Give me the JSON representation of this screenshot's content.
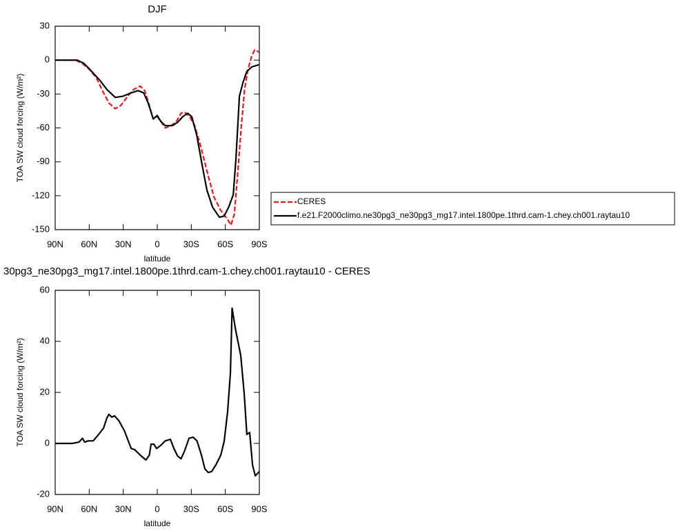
{
  "chart_data": [
    {
      "type": "line",
      "title": "DJF",
      "xlabel": "latitude",
      "ylabel": "TOA SW cloud forcing (W/m²)",
      "xlim": [
        90,
        -90
      ],
      "ylim": [
        -150,
        30
      ],
      "xticks": [
        {
          "value": 90,
          "label": "90N"
        },
        {
          "value": 60,
          "label": "60N"
        },
        {
          "value": 30,
          "label": "30N"
        },
        0,
        {
          "value": -30,
          "label": "30S"
        },
        {
          "value": -60,
          "label": "60S"
        },
        {
          "value": -90,
          "label": "90S"
        }
      ],
      "yticks": [
        30,
        0,
        -30,
        -60,
        -90,
        -120,
        -150
      ],
      "legend": "outside right",
      "series": [
        {
          "name": "CERES",
          "color": "#e8161b",
          "dashed": true,
          "x": [
            90,
            72,
            66,
            60,
            53.5,
            47.4,
            42.6,
            37,
            32,
            26,
            21,
            15,
            11,
            6.7,
            3.6,
            0,
            -3,
            -7,
            -12,
            -16.5,
            -21,
            -24,
            -28.6,
            -33,
            -37.7,
            -44,
            -50,
            -56,
            -62,
            -65,
            -68,
            -71,
            -74,
            -77,
            -80,
            -83.4,
            -86,
            -90
          ],
          "values": [
            0,
            0,
            -3,
            -8,
            -16,
            -29,
            -38,
            -43,
            -40,
            -32,
            -26,
            -23,
            -27,
            -41,
            -52,
            -50,
            -54,
            -60,
            -58,
            -55,
            -47,
            -46,
            -50,
            -58,
            -74,
            -99,
            -121,
            -133,
            -141,
            -146,
            -136,
            -99,
            -60,
            -26,
            -8,
            4,
            9,
            7
          ]
        },
        {
          "name": "f.e21.F2000climo.ne30pg3_ne30pg3_mg17.intel.1800pe.1thrd.cam-1.chey.ch001.raytau10",
          "color": "#000000",
          "dashed": false,
          "x": [
            90,
            70.5,
            64.5,
            57.8,
            50.5,
            44.4,
            37,
            30.4,
            23,
            17,
            12,
            8,
            3.6,
            0,
            -3,
            -7,
            -13.4,
            -18,
            -22.5,
            -26.8,
            -30.4,
            -34.7,
            -39.6,
            -43.8,
            -48.7,
            -54.8,
            -59,
            -63,
            -67,
            -69.4,
            -72.4,
            -75.5,
            -79,
            -83.4,
            -90
          ],
          "values": [
            0,
            0,
            -3,
            -10,
            -18,
            -26,
            -33,
            -32,
            -29,
            -27,
            -29,
            -38,
            -52,
            -49,
            -54,
            -58,
            -58,
            -55,
            -50,
            -47,
            -50,
            -66,
            -93,
            -115,
            -130,
            -139,
            -138,
            -130,
            -119,
            -87,
            -32,
            -20,
            -10,
            -6,
            -4
          ]
        }
      ]
    },
    {
      "type": "line",
      "title": "30pg3_ne30pg3_mg17.intel.1800pe.1thrd.cam-1.chey.ch001.raytau10 - CERES",
      "xlabel": "latitude",
      "ylabel": "TOA SW cloud forcing (W/m²)",
      "xlim": [
        90,
        -90
      ],
      "ylim": [
        -20,
        60
      ],
      "xticks": [
        {
          "value": 90,
          "label": "90N"
        },
        {
          "value": 60,
          "label": "60N"
        },
        {
          "value": 30,
          "label": "30N"
        },
        0,
        {
          "value": -30,
          "label": "30S"
        },
        {
          "value": -60,
          "label": "60S"
        },
        {
          "value": -90,
          "label": "90S"
        }
      ],
      "yticks": [
        60,
        40,
        20,
        0,
        -20
      ],
      "series": [
        {
          "color": "#000000",
          "dashed": false,
          "x": [
            90,
            75,
            69,
            66,
            64,
            61,
            56.5,
            51.7,
            47.4,
            44.4,
            42.6,
            40,
            37.7,
            34,
            29,
            23,
            20,
            14,
            10,
            7,
            5.5,
            3,
            0.6,
            -3,
            -7,
            -11.6,
            -14.6,
            -18,
            -21,
            -24,
            -28,
            -31.7,
            -35,
            -39,
            -42,
            -45,
            -48,
            -51.7,
            -56,
            -59,
            -62,
            -64.5,
            -66,
            -69,
            -73.6,
            -76.6,
            -79,
            -81.5,
            -84,
            -86.4,
            -90
          ],
          "values": [
            0,
            0,
            0.5,
            2,
            0.5,
            1,
            1,
            3.5,
            6,
            10,
            11.4,
            10.3,
            10.8,
            9,
            5,
            -2,
            -2.4,
            -5,
            -6.5,
            -4.6,
            -0.3,
            -0.3,
            -2,
            -0.8,
            1,
            1.6,
            -1.9,
            -5,
            -6,
            -3,
            2,
            2.4,
            1,
            -4.6,
            -10,
            -11.4,
            -11,
            -8.4,
            -4.6,
            0.8,
            12.4,
            27.8,
            53,
            44.6,
            34.6,
            19.7,
            3.5,
            4.3,
            -8.4,
            -12.7,
            -11
          ]
        }
      ]
    }
  ]
}
